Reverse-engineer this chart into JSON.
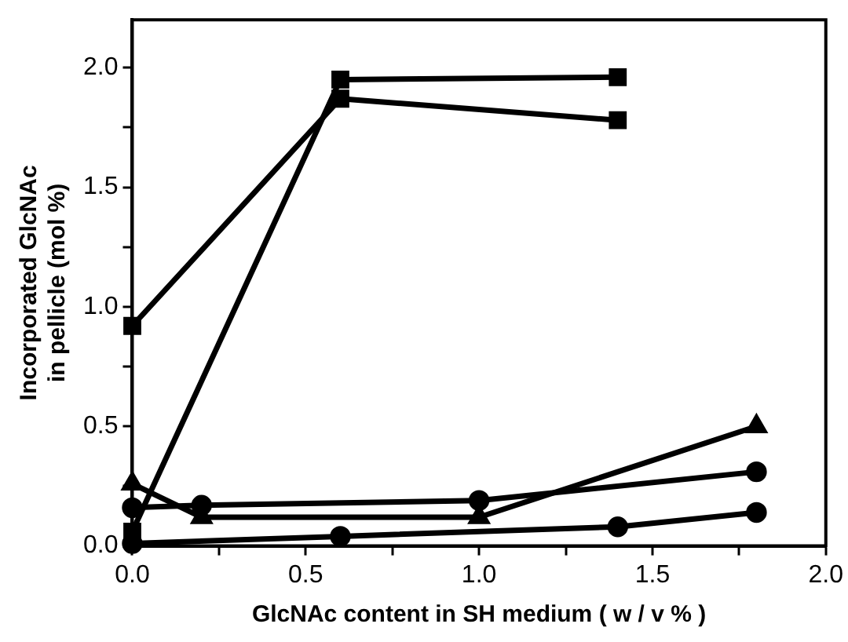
{
  "chart_data": {
    "type": "line",
    "xlabel": "GlcNAc content in SH medium ( w / v % )",
    "ylabel": "Incorporated GlcNAc\nin pellicle (mol %)",
    "xlim": [
      0,
      2
    ],
    "ylim": [
      0,
      2.2
    ],
    "xticks": [
      {
        "value": 0,
        "label": "0.0"
      },
      {
        "value": 0.25,
        "label": null
      },
      {
        "value": 0.5,
        "label": "0.5"
      },
      {
        "value": 0.75,
        "label": null
      },
      {
        "value": 1,
        "label": "1.0"
      },
      {
        "value": 1.25,
        "label": null
      },
      {
        "value": 1.5,
        "label": "1.5"
      },
      {
        "value": 1.75,
        "label": null
      },
      {
        "value": 2,
        "label": "2.0"
      }
    ],
    "yticks": [
      {
        "value": 0,
        "label": "0.0"
      },
      {
        "value": 0.25,
        "label": null
      },
      {
        "value": 0.5,
        "label": "0.5"
      },
      {
        "value": 0.75,
        "label": null
      },
      {
        "value": 1,
        "label": "1.0"
      },
      {
        "value": 1.25,
        "label": null
      },
      {
        "value": 1.5,
        "label": "1.5"
      },
      {
        "value": 1.75,
        "label": null
      },
      {
        "value": 2,
        "label": "2.0"
      }
    ],
    "grid": false,
    "legend": false,
    "line_style": "solid",
    "series": [
      {
        "color": "#000000",
        "marker": "square",
        "x": [
          0,
          0.6,
          1.4
        ],
        "values": [
          0.06,
          1.95,
          1.96
        ]
      },
      {
        "color": "#000000",
        "marker": "square",
        "x": [
          0,
          0.6,
          1.4
        ],
        "values": [
          0.92,
          1.87,
          1.78
        ]
      },
      {
        "color": "#000000",
        "marker": "triangle",
        "x": [
          0,
          0.2,
          1,
          1.8
        ],
        "values": [
          0.26,
          0.12,
          0.12,
          0.5
        ]
      },
      {
        "color": "#000000",
        "marker": "circle",
        "x": [
          0,
          0.2,
          1,
          1.8
        ],
        "values": [
          0.16,
          0.17,
          0.19,
          0.31
        ]
      },
      {
        "color": "#000000",
        "marker": "circle",
        "x": [
          0,
          0.6,
          1.4,
          1.8
        ],
        "values": [
          0.01,
          0.04,
          0.08,
          0.14
        ]
      }
    ]
  }
}
